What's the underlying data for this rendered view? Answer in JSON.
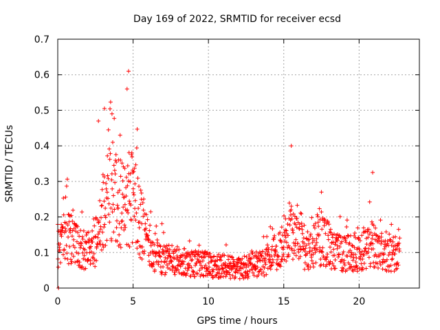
{
  "chart_data": {
    "type": "scatter",
    "title": "Day 169 of 2022, SRMTID for receiver ecsd",
    "xlabel": "GPS time / hours",
    "ylabel": "SRMTID / TECUs",
    "xlim": [
      0,
      24
    ],
    "ylim": [
      0,
      0.7
    ],
    "xticks": [
      0,
      5,
      10,
      15,
      20
    ],
    "yticks": [
      0,
      0.1,
      0.2,
      0.3,
      0.4,
      0.5,
      0.6,
      0.7
    ],
    "xtick_labels": [
      "0",
      "5",
      "10",
      "15",
      "20"
    ],
    "ytick_labels": [
      "0",
      "0.1",
      "0.2",
      "0.3",
      "0.4",
      "0.5",
      "0.6",
      "0.7"
    ],
    "grid": true,
    "marker": "+",
    "series_color": "#ff0000",
    "series": [
      {
        "name": "SRMTID",
        "profile_x": [
          0,
          0.5,
          1,
          1.5,
          2,
          2.5,
          3,
          3.5,
          4,
          4.5,
          5,
          5.5,
          6,
          6.5,
          7,
          8,
          9,
          10,
          11,
          12,
          13,
          14,
          14.5,
          15,
          15.5,
          16,
          16.5,
          17,
          17.5,
          18,
          18.5,
          19,
          19.5,
          20,
          20.5,
          21,
          21.5,
          22,
          22.5,
          22.7
        ],
        "profile_y": [
          0.13,
          0.14,
          0.15,
          0.12,
          0.11,
          0.13,
          0.2,
          0.28,
          0.25,
          0.22,
          0.25,
          0.18,
          0.12,
          0.1,
          0.08,
          0.075,
          0.07,
          0.065,
          0.06,
          0.055,
          0.065,
          0.08,
          0.1,
          0.14,
          0.16,
          0.12,
          0.1,
          0.12,
          0.14,
          0.12,
          0.1,
          0.1,
          0.1,
          0.1,
          0.11,
          0.13,
          0.1,
          0.1,
          0.1,
          0.12
        ],
        "notable_points": [
          {
            "x": 4.7,
            "y": 0.61
          },
          {
            "x": 4.6,
            "y": 0.56
          },
          {
            "x": 3.1,
            "y": 0.505
          },
          {
            "x": 3.6,
            "y": 0.49
          },
          {
            "x": 2.7,
            "y": 0.47
          },
          {
            "x": 15.5,
            "y": 0.4
          },
          {
            "x": 20.9,
            "y": 0.325
          },
          {
            "x": 17.5,
            "y": 0.27
          },
          {
            "x": 0.05,
            "y": 0.0
          }
        ]
      }
    ]
  }
}
